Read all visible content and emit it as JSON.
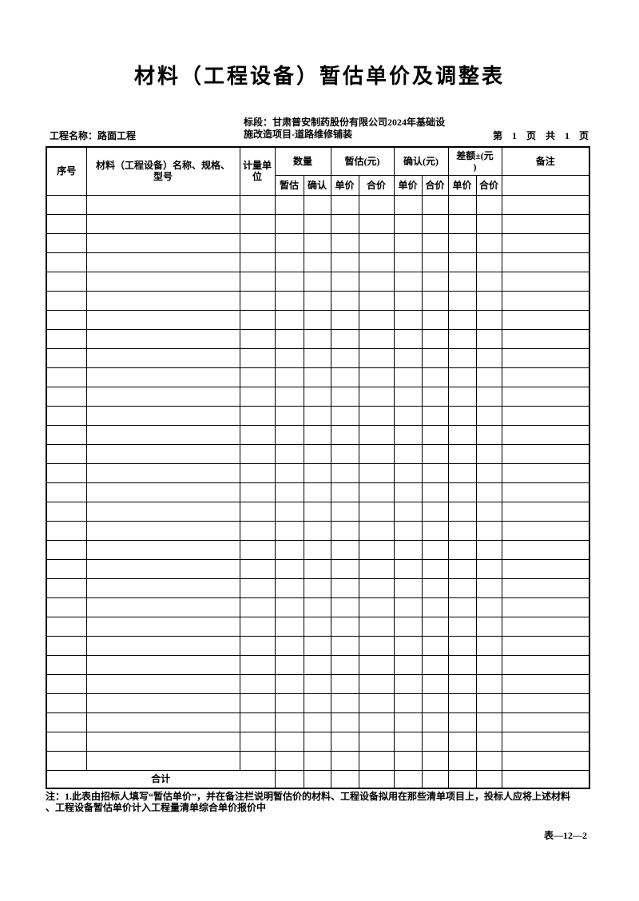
{
  "document": {
    "title": "材料（工程设备）暂估单价及调整表",
    "project_name_label": "工程名称：路面工程",
    "section_label": "标段：甘肃普安制药股份有限公司2024年基础设\n施改造项目-道路维修铺装",
    "page_indicator": "第 1 页 共 1 页",
    "note": "注：1.此表由招标人填写“暂估单价”，并在备注栏说明暂估价的材料、工程设备拟用在那些清单项目上，投标人应将上述材料\n、工程设备暂估单价计入工程量清单综合单价报价中",
    "form_code": "表—12—2"
  },
  "table": {
    "header": {
      "serial": "序号",
      "material_name": "材料（工程设备）名称、规格、\n型号",
      "unit": "计量单\n位",
      "quantity_group": "数量",
      "provisional_group": "暂估(元)",
      "confirmed_group": "确认(元)",
      "difference_group": "差额±(元\n)",
      "remarks": "备注",
      "sub_quantity_provisional": "暂估",
      "sub_quantity_confirmed": "确认",
      "sub_provisional_unit_price": "单价",
      "sub_provisional_total_price": "合价",
      "sub_confirmed_unit_price": "单价",
      "sub_confirmed_total_price": "合价",
      "sub_difference_unit_price": "单价",
      "sub_difference_total_price": "合价"
    },
    "body_row_count": 30,
    "body_column_count": 12,
    "total_row": {
      "label": "合计"
    }
  },
  "colors": {
    "ink": "#000000",
    "paper": "#ffffff"
  }
}
